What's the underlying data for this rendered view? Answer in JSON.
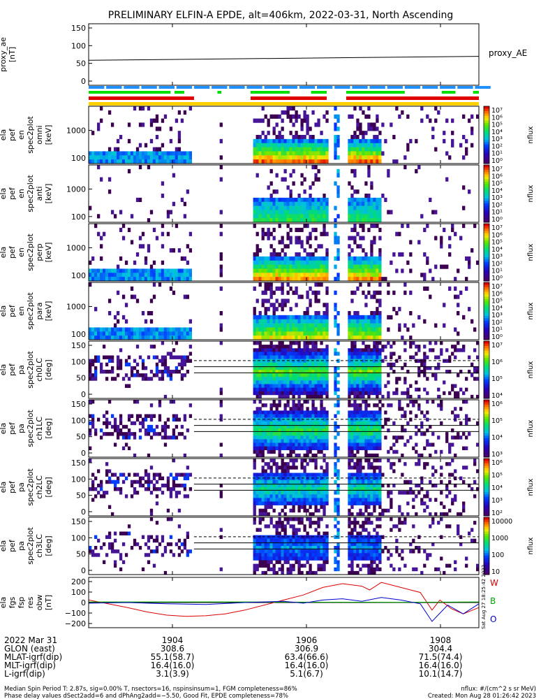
{
  "title": "PRELIMINARY ELFIN-A EPDE, alt=406km, 2022-03-31, North Ascending",
  "stamp": "Sat Aug 27 18:25:42 2022",
  "colors": {
    "blue_bar": "#1e90ff",
    "green_bar": "#00e000",
    "red_bar": "#e00000",
    "yellow_bar": "#ffd000",
    "fgs_red": "#dd0000",
    "fgs_green": "#00aa00",
    "fgs_blue": "#0000cc"
  },
  "chart_data": [
    {
      "type": "line",
      "panel": "proxy_ae",
      "ylabel": [
        "proxy_ae",
        "[nT]"
      ],
      "right_label": "proxy_AE",
      "yticks": [
        "150",
        "100",
        "50",
        "0"
      ],
      "ylim": [
        -10,
        160
      ],
      "x": [
        0,
        1
      ],
      "values": [
        59,
        70
      ]
    },
    {
      "type": "heatmap",
      "panel": "omni",
      "ylabel": [
        "ela",
        "pef",
        "en",
        "spec2plot",
        "omni",
        "[keV]"
      ],
      "yticks": [
        "1000",
        "100"
      ],
      "cbar_ticks": [
        "10⁷",
        "10⁶",
        "10⁵",
        "10⁴",
        "10³",
        "10²",
        "10¹",
        "10⁰"
      ],
      "cbar_label": "nflux",
      "intensity": 1.0
    },
    {
      "type": "heatmap",
      "panel": "anti",
      "ylabel": [
        "ela",
        "pef",
        "en",
        "spec2plot",
        "anti",
        "[keV]"
      ],
      "yticks": [
        "1000",
        "100"
      ],
      "cbar_ticks": [
        "10⁷",
        "10⁶",
        "10⁵",
        "10⁴",
        "10³",
        "10²",
        "10¹",
        "10⁰"
      ],
      "cbar_label": "nflux",
      "intensity": 0.45
    },
    {
      "type": "heatmap",
      "panel": "perp",
      "ylabel": [
        "ela",
        "pef",
        "en",
        "spec2plot",
        "perp",
        "[keV]"
      ],
      "yticks": [
        "1000",
        "100"
      ],
      "cbar_ticks": [
        "10⁷",
        "10⁶",
        "10⁵",
        "10⁴",
        "10³",
        "10²",
        "10¹",
        "10⁰"
      ],
      "cbar_label": "nflux",
      "intensity": 0.95
    },
    {
      "type": "heatmap",
      "panel": "para",
      "ylabel": [
        "ela",
        "pef",
        "en",
        "spec2plot",
        "para",
        "[keV]"
      ],
      "yticks": [
        "1000",
        "100"
      ],
      "cbar_ticks": [
        "10⁷",
        "10⁶",
        "10⁵",
        "10⁴",
        "10³",
        "10²",
        "10¹",
        "10⁰"
      ],
      "cbar_label": "nflux",
      "intensity": 0.75
    },
    {
      "type": "heatmap",
      "panel": "ch0LC",
      "ylabel": [
        "ela",
        "pef",
        "pa",
        "spec2plot",
        "ch0LC",
        "[deg]"
      ],
      "yticks": [
        "150",
        "100",
        "50",
        "0"
      ],
      "cbar_ticks": [
        "10⁷",
        "10⁶",
        "10⁵",
        "10⁴"
      ],
      "cbar_label": "nflux",
      "intensity": 1.0
    },
    {
      "type": "heatmap",
      "panel": "ch1LC",
      "ylabel": [
        "ela",
        "pef",
        "pa",
        "spec2plot",
        "ch1LC",
        "[deg]"
      ],
      "yticks": [
        "150",
        "100",
        "50",
        "0"
      ],
      "cbar_ticks": [
        "10⁶",
        "10⁵",
        "10⁴",
        "10³"
      ],
      "cbar_label": "nflux",
      "intensity": 0.9
    },
    {
      "type": "heatmap",
      "panel": "ch2LC",
      "ylabel": [
        "ela",
        "pef",
        "pa",
        "spec2plot",
        "ch2LC",
        "[deg]"
      ],
      "yticks": [
        "150",
        "100",
        "50",
        "0"
      ],
      "cbar_ticks": [
        "10⁶",
        "10⁵",
        "10⁴",
        "10³",
        "10²"
      ],
      "cbar_label": "nflux",
      "intensity": 0.75
    },
    {
      "type": "heatmap",
      "panel": "ch3LC",
      "ylabel": [
        "ela",
        "pef",
        "pa",
        "spec2plot",
        "ch3LC",
        "[deg]"
      ],
      "yticks": [
        "150",
        "100",
        "50",
        "0"
      ],
      "cbar_ticks": [
        "10000",
        "1000",
        "100",
        "10"
      ],
      "cbar_label": "nflux",
      "intensity": 0.5
    },
    {
      "type": "line",
      "panel": "fgs",
      "ylabel": [
        "ela",
        "fgs",
        "fsp",
        "res",
        "obw",
        "[nT]"
      ],
      "yticks": [
        "200",
        "100",
        "0",
        "−100",
        "−200"
      ],
      "ylim": [
        -200,
        200
      ],
      "series": [
        {
          "name": "W",
          "color": "#dd0000",
          "x": [
            0,
            0.05,
            0.1,
            0.15,
            0.2,
            0.25,
            0.3,
            0.35,
            0.4,
            0.45,
            0.5,
            0.55,
            0.6,
            0.65,
            0.7,
            0.72,
            0.75,
            0.8,
            0.85,
            0.88,
            0.9,
            0.93,
            0.96,
            1.0
          ],
          "values": [
            20,
            -10,
            -40,
            -75,
            -100,
            -110,
            -105,
            -90,
            -60,
            -20,
            20,
            60,
            120,
            150,
            130,
            100,
            160,
            120,
            80,
            -60,
            20,
            -50,
            -90,
            -40
          ]
        },
        {
          "name": "B",
          "color": "#00aa00",
          "x": [
            0,
            0.2,
            0.4,
            0.6,
            0.8,
            1.0
          ],
          "values": [
            5,
            5,
            5,
            3,
            2,
            5
          ]
        },
        {
          "name": "O",
          "color": "#0000cc",
          "x": [
            0,
            0.1,
            0.2,
            0.3,
            0.4,
            0.5,
            0.55,
            0.6,
            0.65,
            0.7,
            0.75,
            0.8,
            0.85,
            0.88,
            0.92,
            0.96,
            1.0
          ],
          "values": [
            -5,
            0,
            -10,
            -15,
            0,
            10,
            -5,
            20,
            30,
            10,
            40,
            20,
            -10,
            -150,
            -20,
            -90,
            -10
          ]
        }
      ]
    }
  ],
  "xaxis": {
    "ticks": [
      "1904",
      "1906",
      "1908"
    ],
    "rows": [
      {
        "label": "2022 Mar 31",
        "values": [
          "1904",
          "1906",
          "1908"
        ]
      },
      {
        "label": "GLON (east)",
        "values": [
          "308.6",
          "306.9",
          "304.4"
        ]
      },
      {
        "label": "MLAT-igrf(dip)",
        "values": [
          "55.1(58.7)",
          "63.4(66.6)",
          "71.5(74.4)"
        ]
      },
      {
        "label": "MLT-igrf(dip)",
        "values": [
          "16.4(16.0)",
          "16.4(16.0)",
          "16.4(16.0)"
        ]
      },
      {
        "label": "L-igrf(dip)",
        "values": [
          "3.1(3.9)",
          "5.1(6.7)",
          "10.1(14.7)"
        ]
      }
    ]
  },
  "footer": {
    "line1": "Median Spin Period T: 2.87s, sig=0.00% T, nsectors=16, nspinsinsum=1, FGM completeness=86%",
    "line2": "Phase delay values dSect2add=6 and dPhAng2add=−5.50, Good Fit, EPDE completeness=78%",
    "right1": "nflux: #/(cm^2 s sr MeV)",
    "right2": "Created: Mon Aug 28 01:26:42 2023"
  }
}
